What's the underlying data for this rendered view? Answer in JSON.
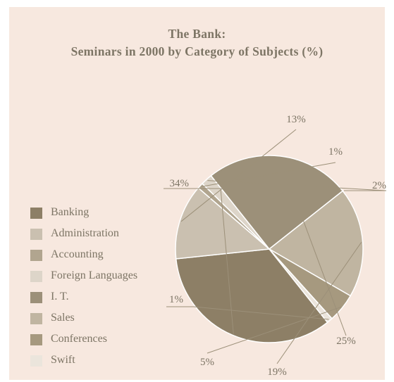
{
  "chart_data": {
    "type": "pie",
    "title_lines": [
      "The Bank:",
      "Seminars in 2000 by Category of Subjects (%)"
    ],
    "legend_position": "left",
    "slices": [
      {
        "name": "Banking",
        "value": 34,
        "label": "34%",
        "color": "#8d7f66"
      },
      {
        "name": "Administration",
        "value": 13,
        "label": "13%",
        "color": "#cac0b0"
      },
      {
        "name": "Accounting",
        "value": 1,
        "label": "1%",
        "color": "#b1a58f"
      },
      {
        "name": "Foreign Languages",
        "value": 2,
        "label": "2%",
        "color": "#ddd5c9"
      },
      {
        "name": "I. T.",
        "value": 25,
        "label": "25%",
        "color": "#9c9079"
      },
      {
        "name": "Sales",
        "value": 19,
        "label": "19%",
        "color": "#c0b5a1"
      },
      {
        "name": "Conferences",
        "value": 5,
        "label": "5%",
        "color": "#a6997f"
      },
      {
        "name": "Swift",
        "value": 1,
        "label": "1%",
        "color": "#ebe5dc"
      }
    ]
  }
}
